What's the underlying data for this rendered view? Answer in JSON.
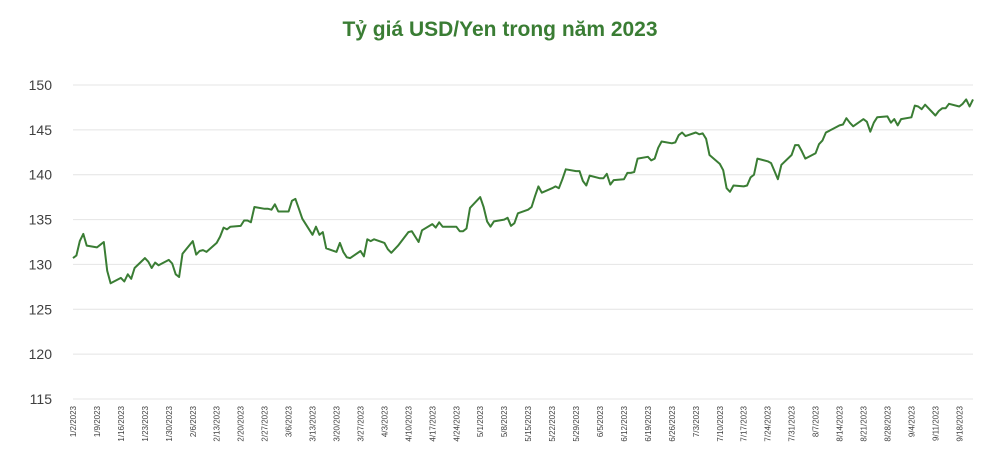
{
  "chart_data": {
    "type": "line",
    "title": "Tỷ giá USD/Yen trong năm 2023",
    "xlabel": "",
    "ylabel": "",
    "ylim": [
      115,
      150
    ],
    "yticks": [
      115,
      120,
      125,
      130,
      135,
      140,
      145,
      150
    ],
    "grid": "horizontal",
    "legend": "none",
    "line_color": "#3a7d34",
    "x_tick_labels": [
      "1/2/2023",
      "1/9/2023",
      "1/16/2023",
      "1/23/2023",
      "1/30/2023",
      "2/6/2023",
      "2/13/2023",
      "2/20/2023",
      "2/27/2023",
      "3/6/2023",
      "3/13/2023",
      "3/20/2023",
      "3/27/2023",
      "4/3/2023",
      "4/10/2023",
      "4/17/2023",
      "4/24/2023",
      "5/1/2023",
      "5/8/2023",
      "5/15/2023",
      "5/22/2023",
      "5/29/2023",
      "6/5/2023",
      "6/12/2023",
      "6/19/2023",
      "6/26/2023",
      "7/3/2023",
      "7/10/2023",
      "7/17/2023",
      "7/24/2023",
      "7/31/2023",
      "8/7/2023",
      "8/14/2023",
      "8/21/2023",
      "8/28/2023",
      "9/4/2023",
      "9/11/2023",
      "9/18/2023"
    ],
    "series": [
      {
        "points": [
          [
            "1/2/2023",
            130.7
          ],
          [
            "1/3/2023",
            131.0
          ],
          [
            "1/4/2023",
            132.6
          ],
          [
            "1/5/2023",
            133.4
          ],
          [
            "1/6/2023",
            132.1
          ],
          [
            "1/9/2023",
            131.9
          ],
          [
            "1/10/2023",
            132.2
          ],
          [
            "1/11/2023",
            132.5
          ],
          [
            "1/12/2023",
            129.3
          ],
          [
            "1/13/2023",
            127.9
          ],
          [
            "1/16/2023",
            128.5
          ],
          [
            "1/17/2023",
            128.1
          ],
          [
            "1/18/2023",
            128.9
          ],
          [
            "1/19/2023",
            128.4
          ],
          [
            "1/20/2023",
            129.6
          ],
          [
            "1/23/2023",
            130.7
          ],
          [
            "1/24/2023",
            130.3
          ],
          [
            "1/25/2023",
            129.6
          ],
          [
            "1/26/2023",
            130.2
          ],
          [
            "1/27/2023",
            129.9
          ],
          [
            "1/30/2023",
            130.5
          ],
          [
            "1/31/2023",
            130.1
          ],
          [
            "2/1/2023",
            128.9
          ],
          [
            "2/2/2023",
            128.6
          ],
          [
            "2/3/2023",
            131.2
          ],
          [
            "2/6/2023",
            132.6
          ],
          [
            "2/7/2023",
            131.1
          ],
          [
            "2/8/2023",
            131.5
          ],
          [
            "2/9/2023",
            131.6
          ],
          [
            "2/10/2023",
            131.4
          ],
          [
            "2/13/2023",
            132.4
          ],
          [
            "2/14/2023",
            133.1
          ],
          [
            "2/15/2023",
            134.1
          ],
          [
            "2/16/2023",
            133.9
          ],
          [
            "2/17/2023",
            134.2
          ],
          [
            "2/20/2023",
            134.3
          ],
          [
            "2/21/2023",
            134.9
          ],
          [
            "2/22/2023",
            134.9
          ],
          [
            "2/23/2023",
            134.7
          ],
          [
            "2/24/2023",
            136.4
          ],
          [
            "2/27/2023",
            136.2
          ],
          [
            "2/28/2023",
            136.2
          ],
          [
            "3/1/2023",
            136.1
          ],
          [
            "3/2/2023",
            136.7
          ],
          [
            "3/3/2023",
            135.9
          ],
          [
            "3/6/2023",
            135.9
          ],
          [
            "3/7/2023",
            137.1
          ],
          [
            "3/8/2023",
            137.3
          ],
          [
            "3/9/2023",
            136.2
          ],
          [
            "3/10/2023",
            135.1
          ],
          [
            "3/13/2023",
            133.3
          ],
          [
            "3/14/2023",
            134.2
          ],
          [
            "3/15/2023",
            133.3
          ],
          [
            "3/16/2023",
            133.6
          ],
          [
            "3/17/2023",
            131.8
          ],
          [
            "3/20/2023",
            131.4
          ],
          [
            "3/21/2023",
            132.4
          ],
          [
            "3/22/2023",
            131.4
          ],
          [
            "3/23/2023",
            130.8
          ],
          [
            "3/24/2023",
            130.7
          ],
          [
            "3/27/2023",
            131.5
          ],
          [
            "3/28/2023",
            130.9
          ],
          [
            "3/29/2023",
            132.8
          ],
          [
            "3/30/2023",
            132.6
          ],
          [
            "3/31/2023",
            132.8
          ],
          [
            "4/3/2023",
            132.4
          ],
          [
            "4/4/2023",
            131.7
          ],
          [
            "4/5/2023",
            131.3
          ],
          [
            "4/6/2023",
            131.7
          ],
          [
            "4/7/2023",
            132.1
          ],
          [
            "4/10/2023",
            133.6
          ],
          [
            "4/11/2023",
            133.7
          ],
          [
            "4/12/2023",
            133.1
          ],
          [
            "4/13/2023",
            132.5
          ],
          [
            "4/14/2023",
            133.8
          ],
          [
            "4/17/2023",
            134.5
          ],
          [
            "4/18/2023",
            134.1
          ],
          [
            "4/19/2023",
            134.7
          ],
          [
            "4/20/2023",
            134.2
          ],
          [
            "4/21/2023",
            134.2
          ],
          [
            "4/24/2023",
            134.2
          ],
          [
            "4/25/2023",
            133.7
          ],
          [
            "4/26/2023",
            133.7
          ],
          [
            "4/27/2023",
            134.0
          ],
          [
            "4/28/2023",
            136.3
          ],
          [
            "5/1/2023",
            137.5
          ],
          [
            "5/2/2023",
            136.4
          ],
          [
            "5/3/2023",
            134.8
          ],
          [
            "5/4/2023",
            134.2
          ],
          [
            "5/5/2023",
            134.8
          ],
          [
            "5/8/2023",
            135.0
          ],
          [
            "5/9/2023",
            135.2
          ],
          [
            "5/10/2023",
            134.3
          ],
          [
            "5/11/2023",
            134.6
          ],
          [
            "5/12/2023",
            135.7
          ],
          [
            "5/15/2023",
            136.1
          ],
          [
            "5/16/2023",
            136.4
          ],
          [
            "5/17/2023",
            137.6
          ],
          [
            "5/18/2023",
            138.7
          ],
          [
            "5/19/2023",
            138.0
          ],
          [
            "5/22/2023",
            138.5
          ],
          [
            "5/23/2023",
            138.7
          ],
          [
            "5/24/2023",
            138.5
          ],
          [
            "5/25/2023",
            139.5
          ],
          [
            "5/26/2023",
            140.6
          ],
          [
            "5/29/2023",
            140.4
          ],
          [
            "5/30/2023",
            140.4
          ],
          [
            "5/31/2023",
            139.3
          ],
          [
            "6/1/2023",
            138.8
          ],
          [
            "6/2/2023",
            139.9
          ],
          [
            "6/5/2023",
            139.6
          ],
          [
            "6/6/2023",
            139.6
          ],
          [
            "6/7/2023",
            140.1
          ],
          [
            "6/8/2023",
            138.9
          ],
          [
            "6/9/2023",
            139.4
          ],
          [
            "6/12/2023",
            139.5
          ],
          [
            "6/13/2023",
            140.2
          ],
          [
            "6/14/2023",
            140.2
          ],
          [
            "6/15/2023",
            140.3
          ],
          [
            "6/16/2023",
            141.8
          ],
          [
            "6/19/2023",
            142.0
          ],
          [
            "6/20/2023",
            141.6
          ],
          [
            "6/21/2023",
            141.8
          ],
          [
            "6/22/2023",
            143.0
          ],
          [
            "6/23/2023",
            143.7
          ],
          [
            "6/26/2023",
            143.5
          ],
          [
            "6/27/2023",
            143.6
          ],
          [
            "6/28/2023",
            144.4
          ],
          [
            "6/29/2023",
            144.7
          ],
          [
            "6/30/2023",
            144.3
          ],
          [
            "7/3/2023",
            144.7
          ],
          [
            "7/4/2023",
            144.5
          ],
          [
            "7/5/2023",
            144.6
          ],
          [
            "7/6/2023",
            144.0
          ],
          [
            "7/7/2023",
            142.2
          ],
          [
            "7/10/2023",
            141.2
          ],
          [
            "7/11/2023",
            140.5
          ],
          [
            "7/12/2023",
            138.5
          ],
          [
            "7/13/2023",
            138.1
          ],
          [
            "7/14/2023",
            138.8
          ],
          [
            "7/17/2023",
            138.7
          ],
          [
            "7/18/2023",
            138.8
          ],
          [
            "7/19/2023",
            139.7
          ],
          [
            "7/20/2023",
            140.0
          ],
          [
            "7/21/2023",
            141.8
          ],
          [
            "7/24/2023",
            141.5
          ],
          [
            "7/25/2023",
            141.3
          ],
          [
            "7/26/2023",
            140.4
          ],
          [
            "7/27/2023",
            139.5
          ],
          [
            "7/28/2023",
            141.1
          ],
          [
            "7/31/2023",
            142.2
          ],
          [
            "8/1/2023",
            143.3
          ],
          [
            "8/2/2023",
            143.3
          ],
          [
            "8/3/2023",
            142.6
          ],
          [
            "8/4/2023",
            141.8
          ],
          [
            "8/7/2023",
            142.4
          ],
          [
            "8/8/2023",
            143.4
          ],
          [
            "8/9/2023",
            143.8
          ],
          [
            "8/10/2023",
            144.7
          ],
          [
            "8/11/2023",
            144.9
          ],
          [
            "8/14/2023",
            145.5
          ],
          [
            "8/15/2023",
            145.6
          ],
          [
            "8/16/2023",
            146.3
          ],
          [
            "8/17/2023",
            145.8
          ],
          [
            "8/18/2023",
            145.4
          ],
          [
            "8/21/2023",
            146.2
          ],
          [
            "8/22/2023",
            145.9
          ],
          [
            "8/23/2023",
            144.8
          ],
          [
            "8/24/2023",
            145.8
          ],
          [
            "8/25/2023",
            146.4
          ],
          [
            "8/28/2023",
            146.5
          ],
          [
            "8/29/2023",
            145.8
          ],
          [
            "8/30/2023",
            146.2
          ],
          [
            "8/31/2023",
            145.5
          ],
          [
            "9/1/2023",
            146.2
          ],
          [
            "9/4/2023",
            146.4
          ],
          [
            "9/5/2023",
            147.7
          ],
          [
            "9/6/2023",
            147.6
          ],
          [
            "9/7/2023",
            147.3
          ],
          [
            "9/8/2023",
            147.8
          ],
          [
            "9/11/2023",
            146.6
          ],
          [
            "9/12/2023",
            147.1
          ],
          [
            "9/13/2023",
            147.4
          ],
          [
            "9/14/2023",
            147.4
          ],
          [
            "9/15/2023",
            147.9
          ],
          [
            "9/18/2023",
            147.6
          ],
          [
            "9/19/2023",
            147.9
          ],
          [
            "9/20/2023",
            148.4
          ],
          [
            "9/21/2023",
            147.6
          ],
          [
            "9/22/2023",
            148.4
          ]
        ]
      }
    ]
  }
}
